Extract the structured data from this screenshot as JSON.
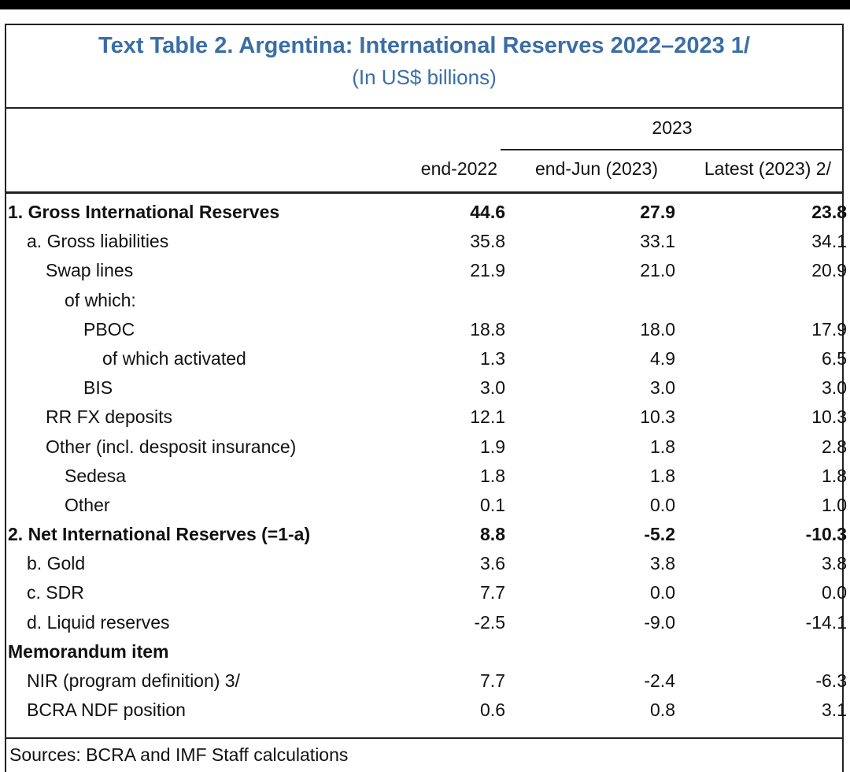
{
  "title": "Text Table 2. Argentina: International Reserves 2022–2023 1/",
  "subtitle": "(In US$ billions)",
  "header": {
    "year_group": "2023",
    "columns": [
      "end-2022",
      "end-Jun (2023)",
      "Latest (2023) 2/"
    ]
  },
  "rows": [
    {
      "label": "1. Gross International Reserves",
      "v": [
        "44.6",
        "27.9",
        "23.8"
      ]
    },
    {
      "label": "a. Gross liabilities",
      "v": [
        "35.8",
        "33.1",
        "34.1"
      ]
    },
    {
      "label": "Swap lines",
      "v": [
        "21.9",
        "21.0",
        "20.9"
      ]
    },
    {
      "label": "of which:",
      "v": [
        "",
        "",
        ""
      ]
    },
    {
      "label": "PBOC",
      "v": [
        "18.8",
        "18.0",
        "17.9"
      ]
    },
    {
      "label": "of which activated",
      "v": [
        "1.3",
        "4.9",
        "6.5"
      ]
    },
    {
      "label": "BIS",
      "v": [
        "3.0",
        "3.0",
        "3.0"
      ]
    },
    {
      "label": "RR FX deposits",
      "v": [
        "12.1",
        "10.3",
        "10.3"
      ]
    },
    {
      "label": "Other (incl. desposit insurance)",
      "v": [
        "1.9",
        "1.8",
        "2.8"
      ]
    },
    {
      "label": "Sedesa",
      "v": [
        "1.8",
        "1.8",
        "1.8"
      ]
    },
    {
      "label": "Other",
      "v": [
        "0.1",
        "0.0",
        "1.0"
      ]
    },
    {
      "label": "2. Net International Reserves (=1-a)",
      "v": [
        "8.8",
        "-5.2",
        "-10.3"
      ]
    },
    {
      "label": "b. Gold",
      "v": [
        "3.6",
        "3.8",
        "3.8"
      ]
    },
    {
      "label": "c. SDR",
      "v": [
        "7.7",
        "0.0",
        "0.0"
      ]
    },
    {
      "label": "d. Liquid reserves",
      "v": [
        "-2.5",
        "-9.0",
        "-14.1"
      ]
    },
    {
      "label": "Memorandum item",
      "v": [
        "",
        "",
        ""
      ]
    },
    {
      "label": "NIR (program definition) 3/",
      "v": [
        "7.7",
        "-2.4",
        "-6.3"
      ]
    },
    {
      "label": "BCRA NDF position",
      "v": [
        "0.6",
        "0.8",
        "3.1"
      ]
    }
  ],
  "source": "Sources: BCRA and IMF Staff calculations",
  "colors": {
    "title": "#3a6ea5",
    "rule": "#222222"
  }
}
